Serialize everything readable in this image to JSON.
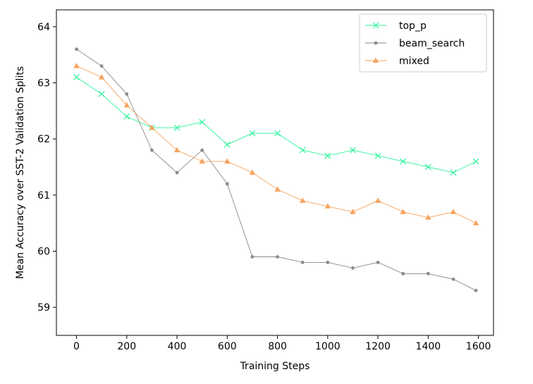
{
  "chart_data": {
    "type": "line",
    "title": "",
    "xlabel": "Training Steps",
    "ylabel": "Mean Accuracy over SST-2 Validation Splits",
    "xlim": [
      -80,
      1660
    ],
    "ylim": [
      58.5,
      64.3
    ],
    "xticks": [
      0,
      200,
      400,
      600,
      800,
      1000,
      1200,
      1400,
      1600
    ],
    "yticks": [
      59,
      60,
      61,
      62,
      63,
      64
    ],
    "xtick_labels": [
      "0",
      "200",
      "400",
      "600",
      "800",
      "1000",
      "1200",
      "1400",
      "1600"
    ],
    "ytick_labels": [
      "59",
      "60",
      "61",
      "62",
      "63",
      "64"
    ],
    "grid": false,
    "legend_position": "top-right",
    "x": [
      0,
      100,
      200,
      300,
      400,
      500,
      600,
      700,
      800,
      900,
      1000,
      1100,
      1200,
      1300,
      1400,
      1500,
      1590
    ],
    "series": [
      {
        "name": "top_p",
        "color": "#2ef39a",
        "marker": "x",
        "values": [
          63.1,
          62.8,
          62.4,
          62.2,
          62.2,
          62.3,
          61.9,
          62.1,
          62.1,
          61.8,
          61.7,
          61.8,
          61.7,
          61.6,
          61.5,
          61.4,
          61.6
        ]
      },
      {
        "name": "beam_search",
        "color": "#8a8a8a",
        "marker": "o",
        "values": [
          63.6,
          63.3,
          62.8,
          61.8,
          61.4,
          61.8,
          61.2,
          59.9,
          59.9,
          59.8,
          59.8,
          59.7,
          59.8,
          59.6,
          59.6,
          59.5,
          59.3
        ]
      },
      {
        "name": "mixed",
        "color": "#f5a35f",
        "marker": "^",
        "values": [
          63.3,
          63.1,
          62.6,
          62.2,
          61.8,
          61.6,
          61.6,
          61.4,
          61.1,
          60.9,
          60.8,
          60.7,
          60.9,
          60.7,
          60.6,
          60.7,
          60.5
        ]
      }
    ]
  }
}
